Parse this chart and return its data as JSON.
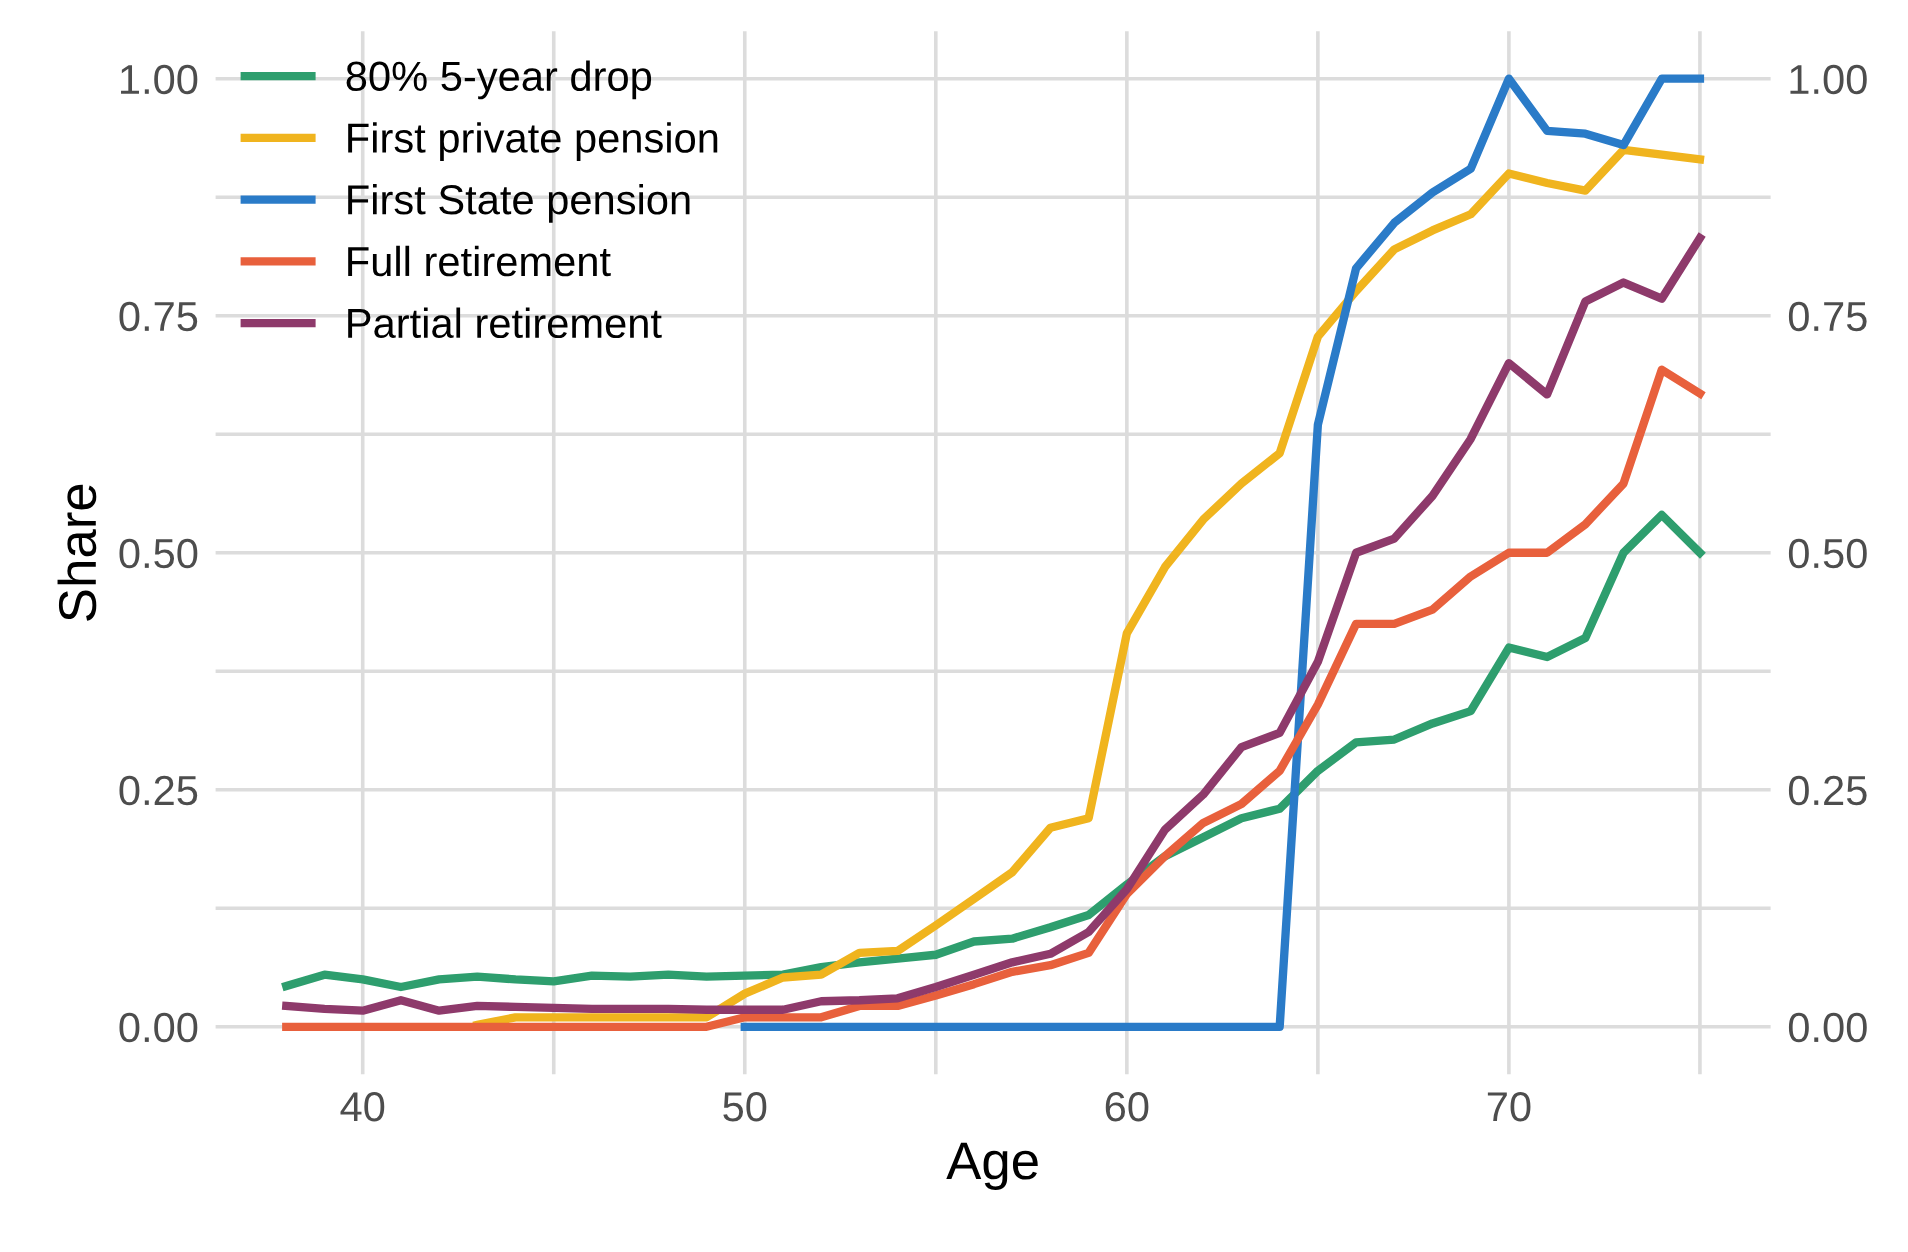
{
  "chart_data": {
    "type": "line",
    "xlabel": "Age",
    "ylabel": "Share",
    "x": [
      38,
      39,
      40,
      41,
      42,
      43,
      44,
      45,
      46,
      47,
      48,
      49,
      50,
      51,
      52,
      53,
      54,
      55,
      56,
      57,
      58,
      59,
      60,
      61,
      62,
      63,
      64,
      65,
      66,
      67,
      68,
      69,
      70,
      71,
      72,
      73,
      74,
      75
    ],
    "series": [
      {
        "name": "80% 5-year drop",
        "color": "#2e9e6e",
        "values": [
          0.043,
          0.055,
          0.05,
          0.042,
          0.05,
          0.053,
          0.05,
          0.048,
          0.054,
          0.053,
          0.055,
          0.053,
          0.054,
          0.055,
          0.063,
          0.068,
          0.072,
          0.076,
          0.09,
          0.093,
          0.105,
          0.118,
          0.15,
          0.18,
          0.2,
          0.22,
          0.23,
          0.27,
          0.3,
          0.303,
          0.32,
          0.333,
          0.4,
          0.39,
          0.41,
          0.5,
          0.54,
          0.5
        ]
      },
      {
        "name": "First private pension",
        "color": "#f0b41e",
        "values": [
          null,
          null,
          null,
          null,
          null,
          0.002,
          0.01,
          0.01,
          0.01,
          0.01,
          0.01,
          0.01,
          0.035,
          0.052,
          0.055,
          0.078,
          0.08,
          0.107,
          0.135,
          0.163,
          0.21,
          0.22,
          0.415,
          0.485,
          0.535,
          0.573,
          0.605,
          0.728,
          0.776,
          0.82,
          0.84,
          0.857,
          0.9,
          0.89,
          0.882,
          0.925,
          0.92,
          0.915
        ]
      },
      {
        "name": "First State pension",
        "color": "#2a7bc8",
        "values": [
          null,
          null,
          null,
          null,
          null,
          null,
          null,
          null,
          null,
          null,
          null,
          null,
          0,
          0,
          0,
          0,
          0,
          0,
          0,
          0,
          0,
          0,
          0,
          0,
          0,
          0,
          0,
          0.635,
          0.8,
          0.848,
          0.88,
          0.905,
          1.0,
          0.945,
          0.942,
          0.93,
          1.0,
          1.0
        ]
      },
      {
        "name": "Full retirement",
        "color": "#e8603c",
        "values": [
          0,
          0,
          0,
          0,
          0,
          0,
          0,
          0,
          0,
          0,
          0,
          0,
          0.01,
          0.01,
          0.01,
          0.022,
          0.022,
          0.033,
          0.045,
          0.058,
          0.065,
          0.078,
          0.14,
          0.18,
          0.215,
          0.235,
          0.27,
          0.34,
          0.425,
          0.425,
          0.44,
          0.475,
          0.5,
          0.5,
          0.53,
          0.573,
          0.693,
          0.668
        ]
      },
      {
        "name": "Partial retirement",
        "color": "#8e3a6b",
        "values": [
          0.022,
          0.019,
          0.017,
          0.028,
          0.017,
          0.022,
          0.021,
          0.02,
          0.019,
          0.019,
          0.019,
          0.018,
          0.018,
          0.018,
          0.027,
          0.028,
          0.03,
          0.042,
          0.055,
          0.068,
          0.077,
          0.1,
          0.145,
          0.208,
          0.245,
          0.295,
          0.31,
          0.385,
          0.5,
          0.515,
          0.56,
          0.62,
          0.7,
          0.667,
          0.765,
          0.785,
          0.768,
          0.832
        ]
      }
    ],
    "xlim": [
      36.15,
      76.85
    ],
    "xticks": [
      40,
      {
        "value": 45,
        "label": null
      },
      50,
      {
        "value": 55,
        "label": null
      },
      60,
      {
        "value": 65,
        "label": null
      },
      70,
      {
        "value": 75,
        "label": null
      }
    ],
    "ylim": [
      -0.05,
      1.05
    ],
    "yticks": [
      {
        "value": 0,
        "label": "0.00"
      },
      {
        "value": 0.125,
        "label": null
      },
      {
        "value": 0.25,
        "label": "0.25"
      },
      {
        "value": 0.375,
        "label": null
      },
      {
        "value": 0.5,
        "label": "0.50"
      },
      {
        "value": 0.625,
        "label": null
      },
      {
        "value": 0.75,
        "label": "0.75"
      },
      {
        "value": 0.875,
        "label": null
      },
      {
        "value": 1,
        "label": "1.00"
      }
    ],
    "y2lim": [
      -0.05,
      1.05
    ],
    "y2ticks": [
      {
        "value": 0,
        "label": "0.00"
      },
      {
        "value": 0.125,
        "label": null
      },
      {
        "value": 0.25,
        "label": "0.25"
      },
      {
        "value": 0.375,
        "label": null
      },
      {
        "value": 0.5,
        "label": "0.50"
      },
      {
        "value": 0.625,
        "label": null
      },
      {
        "value": 0.75,
        "label": "0.75"
      },
      {
        "value": 0.875,
        "label": null
      },
      {
        "value": 1,
        "label": "1.00"
      }
    ],
    "grid": true,
    "legend": "top left",
    "line_style": "solid"
  }
}
